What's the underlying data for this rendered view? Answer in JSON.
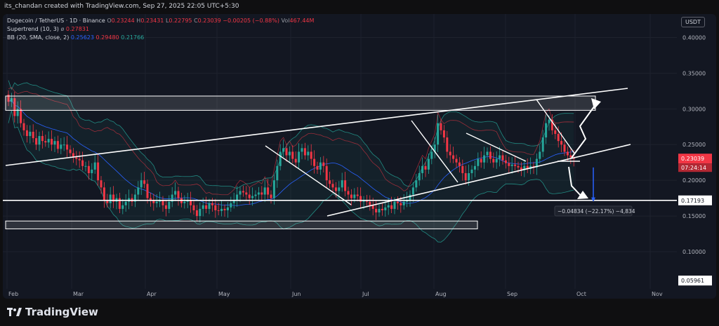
{
  "header": {
    "credit": "its_chandan created with TradingView.com, Sep 27, 2025 22:05 UTC+5:30"
  },
  "legend": {
    "pair": "Dogecoin / TetherUS · 1D · Binance",
    "ohlc_o_label": "O",
    "ohlc_o": "0.23244",
    "ohlc_h_label": "H",
    "ohlc_h": "0.23431",
    "ohlc_l_label": "L",
    "ohlc_l": "0.22795",
    "ohlc_c_label": "C",
    "ohlc_c": "0.23039",
    "change": "−0.00205 (−0.88%)",
    "vol_label": "Vol",
    "vol": "467.44M",
    "supertrend_label": "Supertrend (10, 3)",
    "supertrend_symbol": "ø",
    "supertrend_value": "0.27831",
    "bb_label": "BB (20, SMA, close, 2)",
    "bb_basis": "0.25623",
    "bb_upper": "0.29480",
    "bb_lower": "0.21766"
  },
  "currency": "USDT",
  "price_tags": {
    "current": "0.23039",
    "countdown": "07:24:14",
    "target": "0.17193",
    "low": "0.05961"
  },
  "measure_label": "−0.04834 (−22.17%) −4,834",
  "brand": "TradingView",
  "colors": {
    "bg": "#131722",
    "up": "#26a69a",
    "down": "#f23645",
    "bb_basis": "#2962ff",
    "bb_band": "#26a69a",
    "supertrend": "#f23645"
  },
  "chart_data": {
    "type": "candlestick",
    "x_ticks": [
      "Feb",
      "Mar",
      "Apr",
      "May",
      "Jun",
      "Jul",
      "Aug",
      "Sep",
      "Oct",
      "Nov"
    ],
    "y_ticks": [
      "0.40000",
      "0.35000",
      "0.30000",
      "0.25000",
      "0.20000",
      "0.15000",
      "0.10000"
    ],
    "ylim": [
      0.048,
      0.425
    ],
    "grid": true,
    "closes": [
      0.31,
      0.315,
      0.29,
      0.3,
      0.28,
      0.27,
      0.262,
      0.268,
      0.259,
      0.25,
      0.262,
      0.255,
      0.253,
      0.258,
      0.25,
      0.255,
      0.244,
      0.25,
      0.25,
      0.243,
      0.238,
      0.232,
      0.23,
      0.228,
      0.22,
      0.22,
      0.21,
      0.215,
      0.225,
      0.2,
      0.19,
      0.172,
      0.168,
      0.18,
      0.17,
      0.175,
      0.16,
      0.165,
      0.17,
      0.175,
      0.17,
      0.18,
      0.19,
      0.2,
      0.195,
      0.175,
      0.172,
      0.168,
      0.17,
      0.172,
      0.165,
      0.16,
      0.17,
      0.18,
      0.185,
      0.175,
      0.168,
      0.17,
      0.172,
      0.165,
      0.158,
      0.15,
      0.16,
      0.165,
      0.16,
      0.168,
      0.165,
      0.158,
      0.157,
      0.16,
      0.158,
      0.162,
      0.168,
      0.172,
      0.18,
      0.185,
      0.183,
      0.18,
      0.175,
      0.178,
      0.18,
      0.183,
      0.18,
      0.19,
      0.18,
      0.175,
      0.2,
      0.22,
      0.24,
      0.245,
      0.235,
      0.24,
      0.23,
      0.225,
      0.24,
      0.245,
      0.235,
      0.24,
      0.23,
      0.22,
      0.215,
      0.225,
      0.22,
      0.2,
      0.195,
      0.19,
      0.185,
      0.19,
      0.2,
      0.185,
      0.18,
      0.175,
      0.18,
      0.178,
      0.17,
      0.172,
      0.17,
      0.165,
      0.16,
      0.155,
      0.16,
      0.158,
      0.162,
      0.165,
      0.16,
      0.17,
      0.168,
      0.165,
      0.17,
      0.172,
      0.18,
      0.19,
      0.2,
      0.21,
      0.22,
      0.215,
      0.23,
      0.24,
      0.25,
      0.28,
      0.27,
      0.26,
      0.24,
      0.235,
      0.23,
      0.225,
      0.22,
      0.21,
      0.2,
      0.21,
      0.215,
      0.22,
      0.23,
      0.225,
      0.235,
      0.24,
      0.23,
      0.225,
      0.23,
      0.235,
      0.228,
      0.224,
      0.22,
      0.222,
      0.22,
      0.218,
      0.215,
      0.22,
      0.216,
      0.22,
      0.218,
      0.23,
      0.24,
      0.26,
      0.28,
      0.285,
      0.27,
      0.265,
      0.255,
      0.25,
      0.24,
      0.235,
      0.232,
      0.23
    ],
    "annotations": [
      "ascending channel",
      "demand zone 0.13–0.14",
      "supply zone 0.30–0.32",
      "falling wedges",
      "projected drop to 0.17193"
    ]
  }
}
